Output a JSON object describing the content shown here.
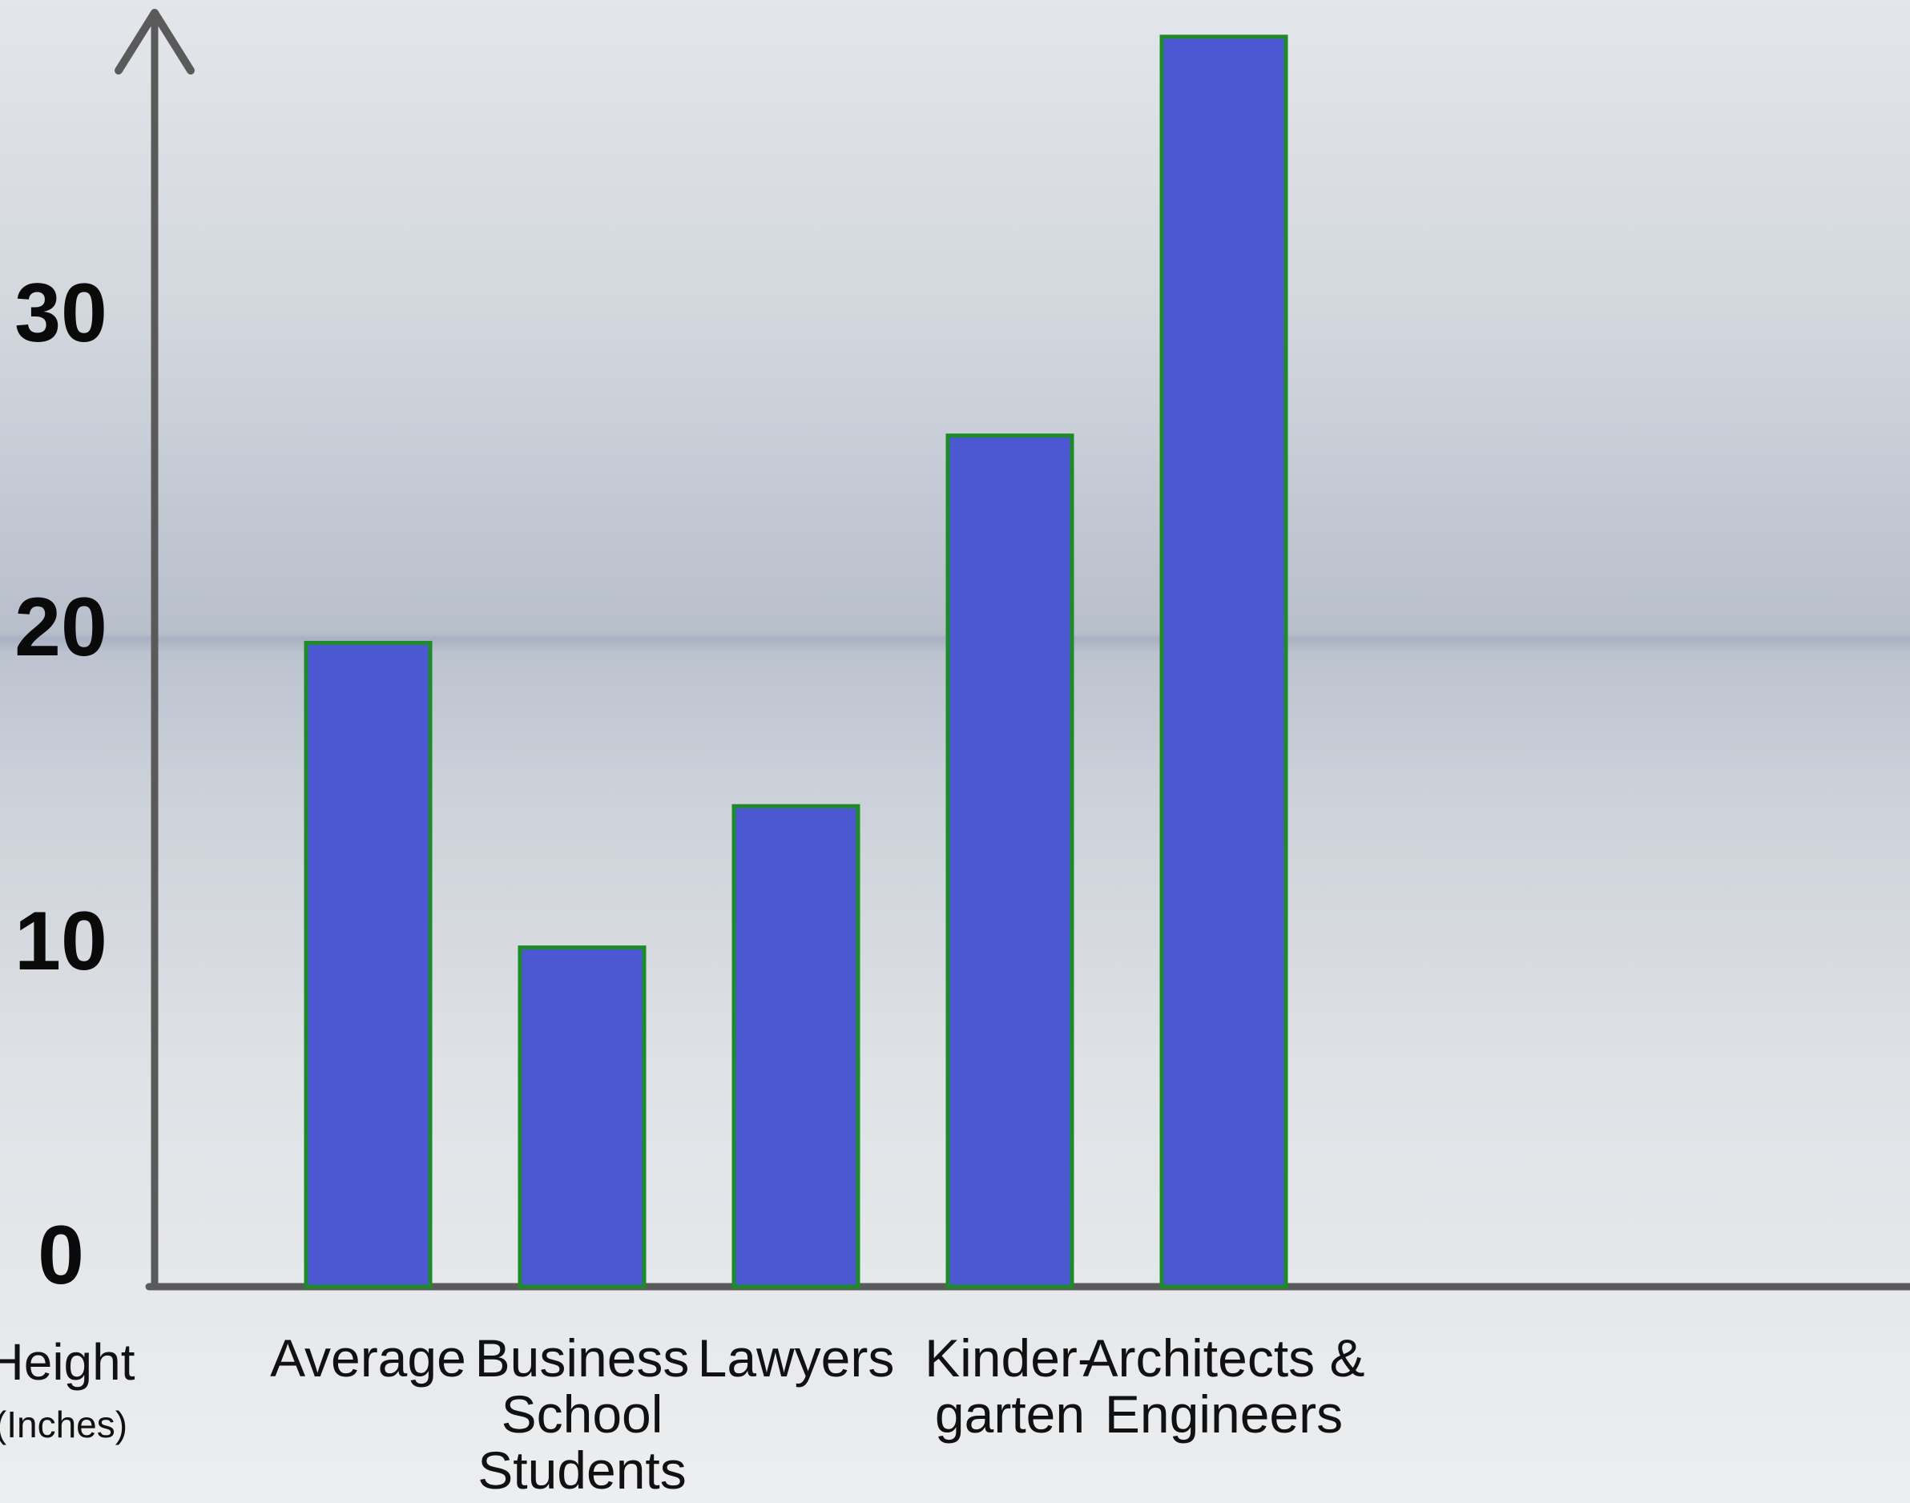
{
  "chart_data": {
    "type": "bar",
    "categories": [
      [
        "Average"
      ],
      [
        "Business",
        "School",
        "Students"
      ],
      [
        "Lawyers"
      ],
      [
        "Kinder-",
        "garten"
      ],
      [
        "Architects &",
        "Engineers"
      ]
    ],
    "values": [
      20.5,
      10.8,
      15.3,
      27.1,
      39.8
    ],
    "ylabel": "Height",
    "yunit": "(Inches)",
    "yticks": [
      0,
      10,
      20,
      30
    ],
    "ylim": [
      0,
      40
    ],
    "grid": false,
    "colors": {
      "bar_fill": "#4b58d2",
      "bar_stroke": "#1e8a2a",
      "axis": "#5a5a5a",
      "text": "#111111"
    }
  }
}
